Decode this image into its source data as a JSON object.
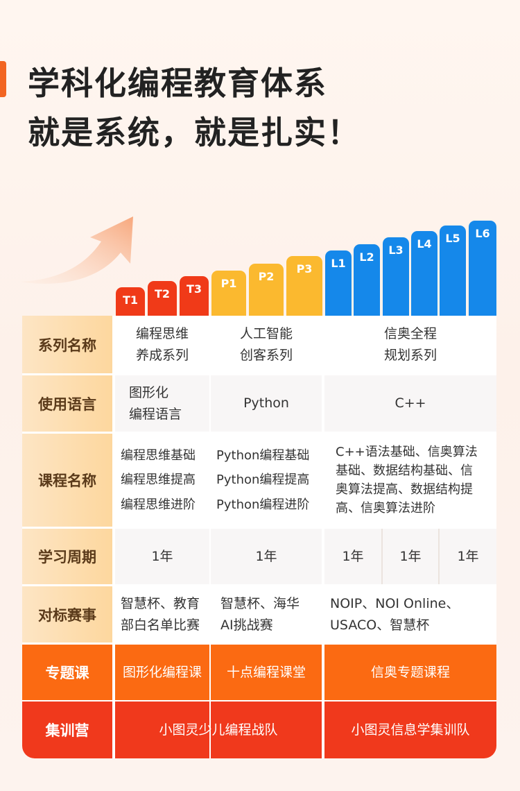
{
  "headline": {
    "line1": "学科化编程教育体系",
    "line2": "就是系统，就是扎实！"
  },
  "levels": {
    "t": [
      "T1",
      "T2",
      "T3"
    ],
    "p": [
      "P1",
      "P2",
      "P3"
    ],
    "l": [
      "L1",
      "L2",
      "L3",
      "L4",
      "L5",
      "L6"
    ]
  },
  "rows": {
    "series": {
      "label": "系列名称",
      "t": [
        "编程思维",
        "养成系列"
      ],
      "p": [
        "人工智能",
        "创客系列"
      ],
      "l": [
        "信奥全程",
        "规划系列"
      ]
    },
    "language": {
      "label": "使用语言",
      "t": [
        "图形化",
        "编程语言"
      ],
      "p": "Python",
      "l": "C++"
    },
    "courses": {
      "label": "课程名称",
      "t": [
        "编程思维基础",
        "编程思维提高",
        "编程思维进阶"
      ],
      "p": [
        "Python编程基础",
        "Python编程提高",
        "Python编程进阶"
      ],
      "l": [
        "C++语法基础、信奥算法",
        "基础、数据结构基础、信",
        "奥算法提高、数据结构提",
        "高、信奥算法进阶"
      ]
    },
    "period": {
      "label": "学习周期",
      "t": "1年",
      "p": "1年",
      "l": [
        "1年",
        "1年",
        "1年"
      ]
    },
    "competitions": {
      "label": "对标赛事",
      "t": [
        "智慧杯、教育",
        "部白名单比赛"
      ],
      "p": [
        "智慧杯、海华",
        "AI挑战赛"
      ],
      "l": [
        "NOIP、NOI Online、",
        "USACO、智慧杯"
      ]
    },
    "special": {
      "label": "专题课",
      "t": "图形化编程课",
      "p": "十点编程课堂",
      "l": "信奥专题课程"
    },
    "camp": {
      "label": "集训营",
      "tp": "小图灵少儿编程战队",
      "l": "小图灵信息学集训队"
    }
  },
  "colors": {
    "accent": "#f26522",
    "t_series": "#f03a18",
    "p_series": "#fbb92f",
    "l_series": "#1588ea",
    "special_row": "#fb6a12",
    "camp_row": "#f0391c"
  }
}
